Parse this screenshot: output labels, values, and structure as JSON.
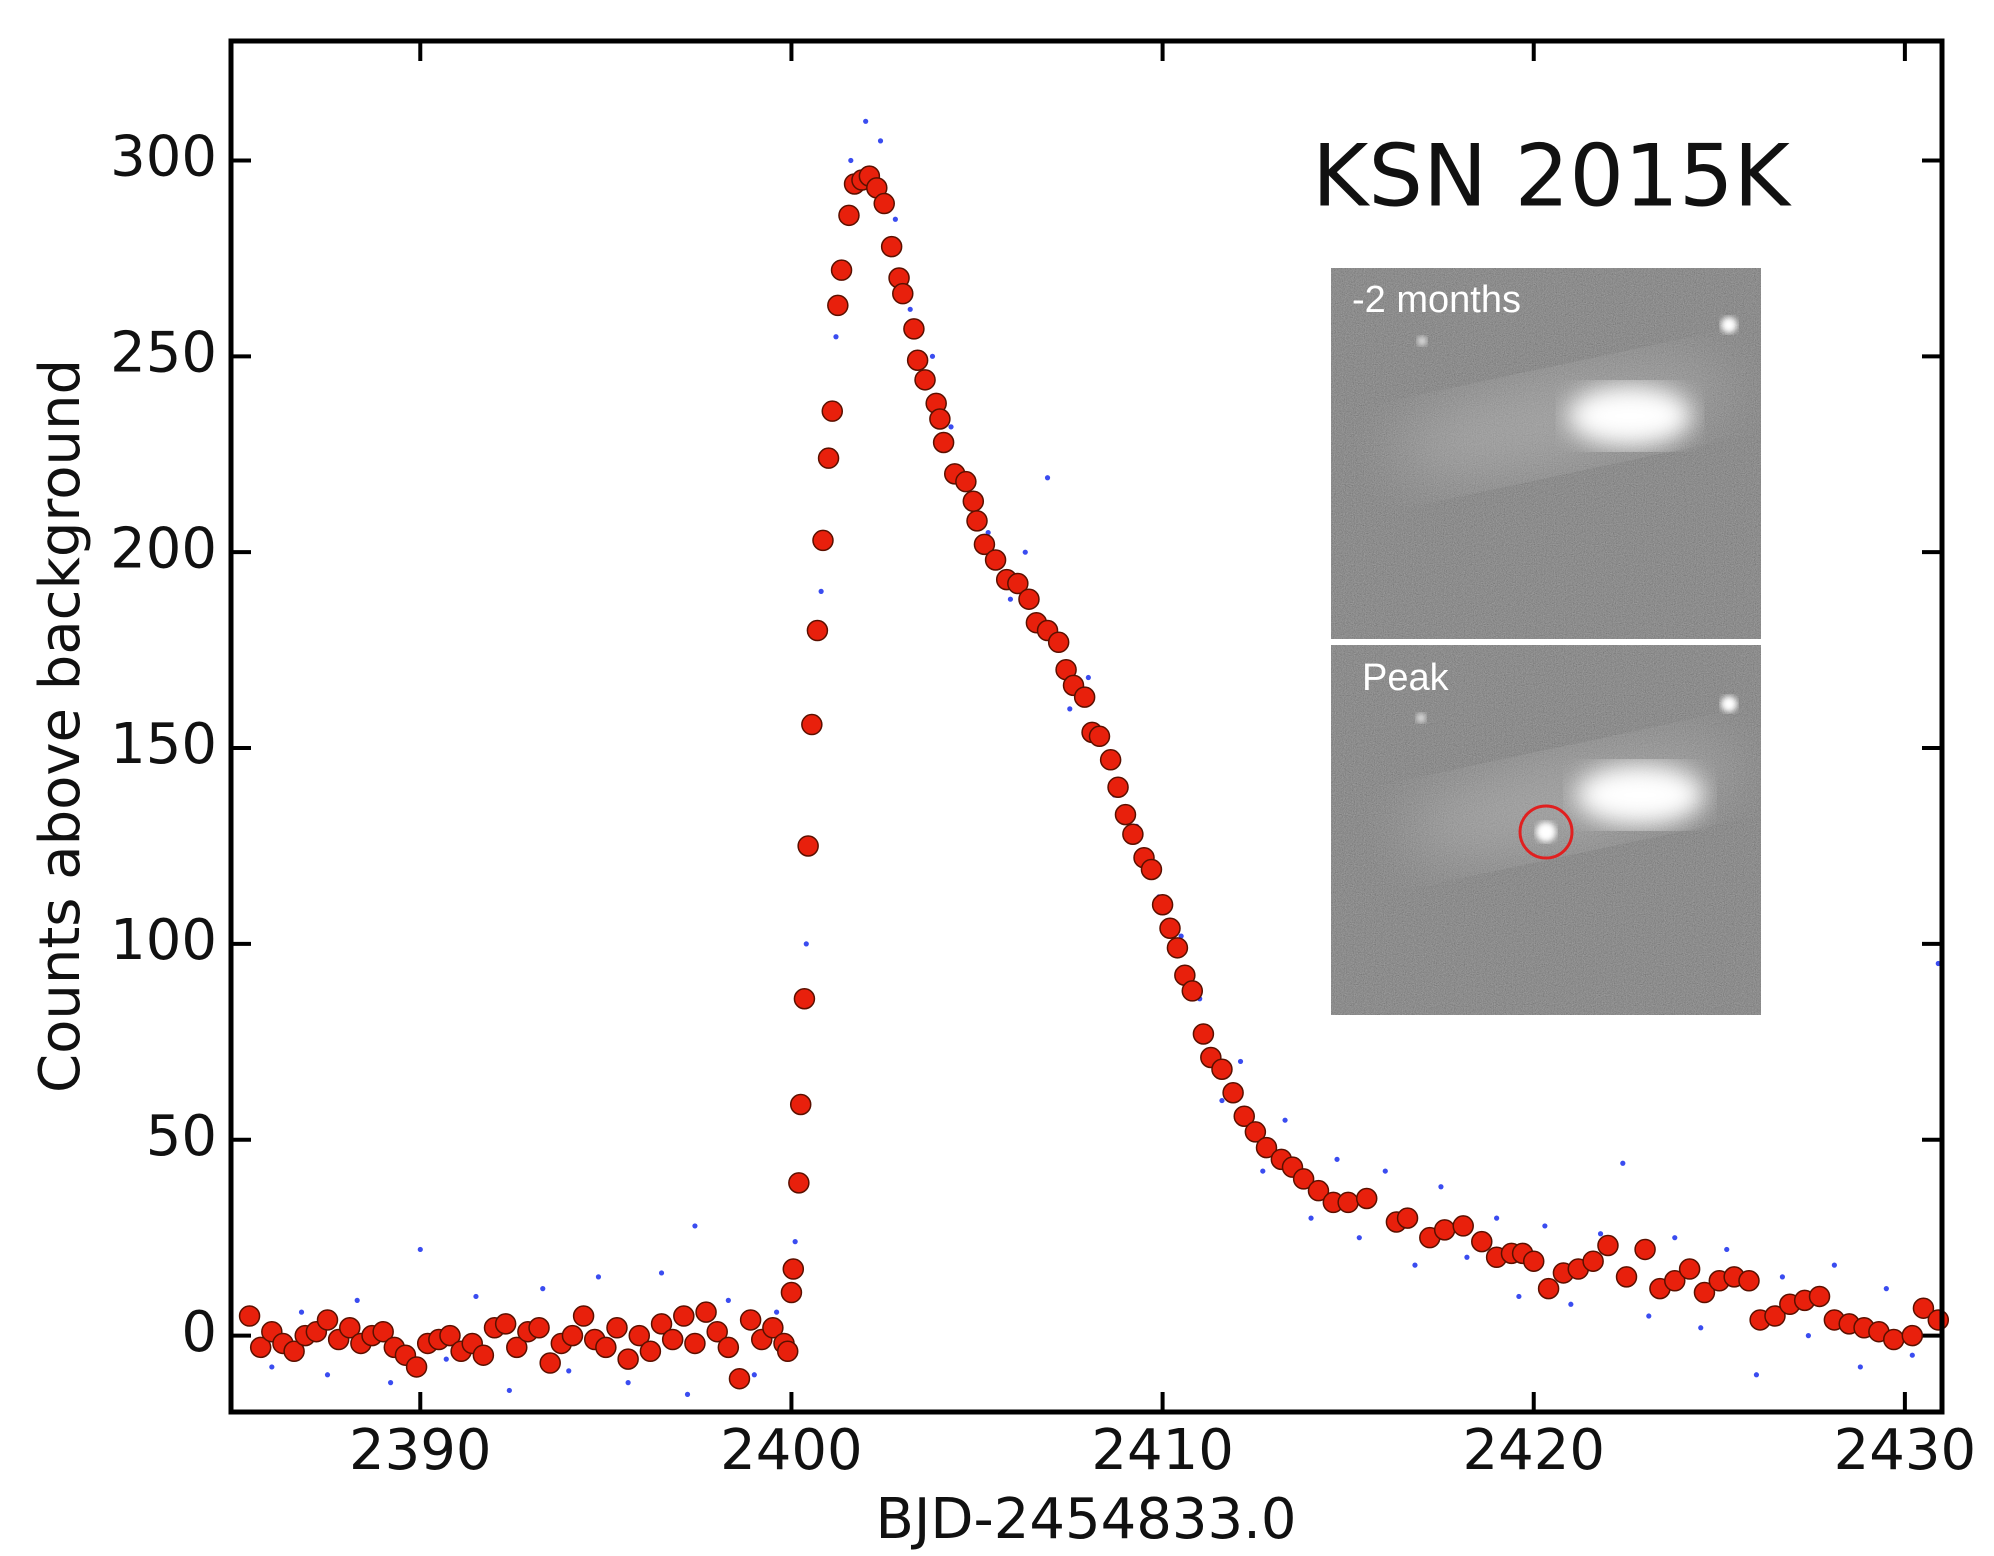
{
  "chart_data": {
    "type": "scatter",
    "title": "KSN 2015K",
    "annotations": [
      "-2 months",
      "Peak"
    ],
    "x_label": "BJD-2454833.0",
    "y_label": "Counts above background",
    "xlim": [
      2384.9,
      2431.0
    ],
    "ylim": [
      -19.5,
      330.5
    ],
    "xticks": [
      2390,
      2400,
      2410,
      2420,
      2430
    ],
    "yticks": [
      0,
      50,
      100,
      150,
      200,
      250,
      300
    ],
    "grid": false,
    "series": [
      {
        "color": "#3a4cf0",
        "x": [
          2386.0,
          2386.8,
          2387.5,
          2388.3,
          2389.2,
          2390.0,
          2390.7,
          2391.5,
          2392.4,
          2393.3,
          2394.0,
          2394.8,
          2395.6,
          2396.5,
          2397.2,
          2397.4,
          2398.3,
          2399.0,
          2399.6,
          2400.1,
          2400.4,
          2400.8,
          2401.2,
          2401.6,
          2402.0,
          2402.4,
          2402.8,
          2403.2,
          2403.8,
          2404.3,
          2404.8,
          2405.3,
          2405.9,
          2406.3,
          2406.9,
          2407.5,
          2408.0,
          2408.7,
          2409.3,
          2409.9,
          2410.5,
          2411.0,
          2411.6,
          2412.1,
          2412.7,
          2413.3,
          2414.0,
          2414.7,
          2415.3,
          2416.0,
          2416.8,
          2417.5,
          2418.2,
          2419.0,
          2419.6,
          2420.3,
          2421.0,
          2421.8,
          2422.4,
          2423.1,
          2423.8,
          2424.5,
          2425.2,
          2426.0,
          2426.7,
          2427.4,
          2428.1,
          2428.8,
          2429.5,
          2430.2,
          2430.9
        ],
        "values": [
          -8,
          6,
          -10,
          9,
          -12,
          22,
          -6,
          10,
          -14,
          12,
          -9,
          15,
          -12,
          16,
          -15,
          28,
          9,
          -10,
          6,
          24,
          100,
          190,
          255,
          300,
          310,
          305,
          285,
          262,
          250,
          232,
          218,
          205,
          188,
          200,
          219,
          160,
          168,
          138,
          130,
          112,
          102,
          86,
          60,
          70,
          42,
          55,
          30,
          45,
          25,
          42,
          18,
          38,
          20,
          30,
          10,
          28,
          8,
          26,
          44,
          5,
          25,
          2,
          22,
          -10,
          15,
          0,
          18,
          -8,
          12,
          -5,
          95
        ]
      },
      {
        "color": "#e8200c",
        "x": [
          2385.4,
          2385.7,
          2386.0,
          2386.3,
          2386.6,
          2386.9,
          2387.2,
          2387.5,
          2387.8,
          2388.1,
          2388.4,
          2388.7,
          2389.0,
          2389.3,
          2389.6,
          2389.9,
          2390.2,
          2390.5,
          2390.8,
          2391.1,
          2391.4,
          2391.7,
          2392.0,
          2392.3,
          2392.6,
          2392.9,
          2393.2,
          2393.5,
          2393.8,
          2394.1,
          2394.4,
          2394.7,
          2395.0,
          2395.3,
          2395.6,
          2395.9,
          2396.2,
          2396.5,
          2396.8,
          2397.1,
          2397.4,
          2397.7,
          2398.0,
          2398.3,
          2398.6,
          2398.9,
          2399.2,
          2399.5,
          2399.8,
          2399.9,
          2400.0,
          2400.05,
          2400.2,
          2400.25,
          2400.35,
          2400.45,
          2400.55,
          2400.7,
          2400.85,
          2401.0,
          2401.1,
          2401.25,
          2401.35,
          2401.55,
          2401.7,
          2401.9,
          2402.1,
          2402.3,
          2402.5,
          2402.7,
          2402.9,
          2403.0,
          2403.3,
          2403.4,
          2403.6,
          2403.9,
          2404.0,
          2404.1,
          2404.4,
          2404.7,
          2404.9,
          2405.0,
          2405.2,
          2405.5,
          2405.8,
          2406.1,
          2406.4,
          2406.6,
          2406.9,
          2407.2,
          2407.4,
          2407.6,
          2407.9,
          2408.1,
          2408.3,
          2408.6,
          2408.8,
          2409.0,
          2409.2,
          2409.5,
          2409.7,
          2410.0,
          2410.2,
          2410.4,
          2410.6,
          2410.8,
          2411.1,
          2411.3,
          2411.6,
          2411.9,
          2412.2,
          2412.5,
          2412.8,
          2413.2,
          2413.5,
          2413.8,
          2414.2,
          2414.6,
          2415.0,
          2415.5,
          2416.3,
          2416.6,
          2417.2,
          2417.6,
          2418.1,
          2418.6,
          2419.0,
          2419.4,
          2419.7,
          2420.0,
          2420.4,
          2420.8,
          2421.2,
          2421.6,
          2422.0,
          2422.5,
          2423.0,
          2423.4,
          2423.8,
          2424.2,
          2424.6,
          2425.0,
          2425.4,
          2425.8,
          2426.1,
          2426.5,
          2426.9,
          2427.3,
          2427.7,
          2428.1,
          2428.5,
          2428.9,
          2429.3,
          2429.7,
          2430.2,
          2430.5,
          2430.9
        ],
        "values": [
          5,
          -3,
          1,
          -2,
          -4,
          0,
          1,
          4,
          -1,
          2,
          -2,
          0,
          1,
          -3,
          -5,
          -8,
          -2,
          -1,
          0,
          -4,
          -2,
          -5,
          2,
          3,
          -3,
          1,
          2,
          -7,
          -2,
          0,
          5,
          -1,
          -3,
          2,
          -6,
          0,
          -4,
          3,
          -1,
          5,
          -2,
          6,
          1,
          -3,
          -11,
          4,
          -1,
          2,
          -2,
          -4,
          11,
          17,
          39,
          59,
          86,
          125,
          156,
          180,
          203,
          224,
          236,
          263,
          272,
          286,
          294,
          295,
          296,
          293,
          289,
          278,
          270,
          266,
          257,
          249,
          244,
          238,
          234,
          228,
          220,
          218,
          213,
          208,
          202,
          198,
          193,
          192,
          188,
          182,
          180,
          177,
          170,
          166,
          163,
          154,
          153,
          147,
          140,
          133,
          128,
          122,
          119,
          110,
          104,
          99,
          92,
          88,
          77,
          71,
          68,
          62,
          56,
          52,
          48,
          45,
          43,
          40,
          37,
          34,
          34,
          35,
          29,
          30,
          25,
          27,
          28,
          24,
          20,
          21,
          21,
          19,
          12,
          16,
          17,
          19,
          23,
          15,
          22,
          12,
          14,
          17,
          11,
          14,
          15,
          14,
          4,
          5,
          8,
          9,
          10,
          4,
          3,
          2,
          1,
          -1,
          0,
          7,
          4
        ]
      }
    ]
  }
}
